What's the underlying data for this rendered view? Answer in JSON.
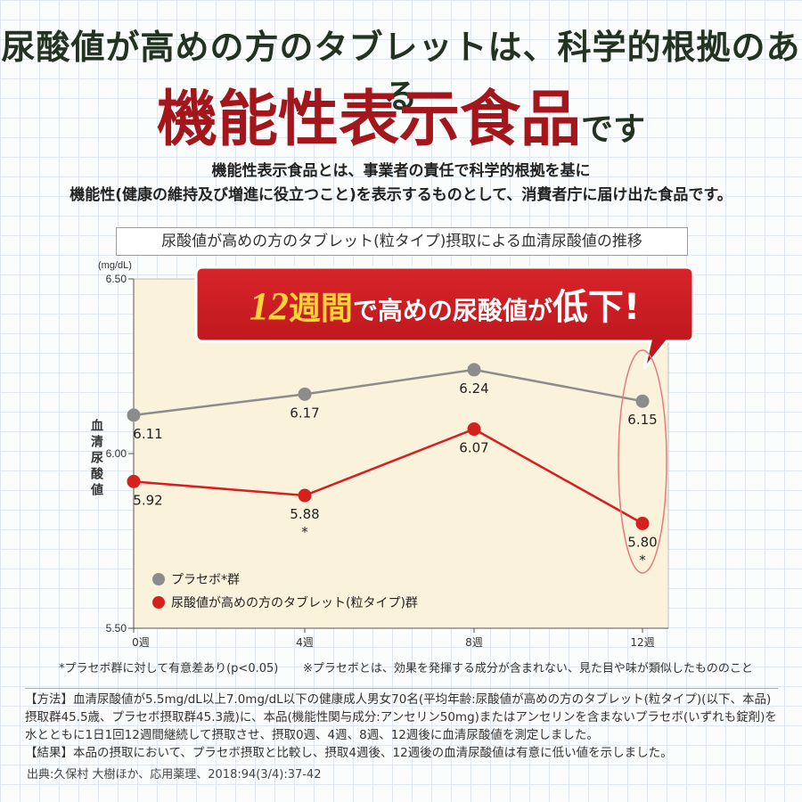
{
  "header": {
    "line1": "尿酸値が高めの方のタブレットは、科学的根拠のある",
    "line2_main": "機能性表示食品",
    "line2_suffix": "です"
  },
  "description": {
    "line1": "機能性表示食品とは、事業者の責任で科学的根拠を基に",
    "line2": "機能性(健康の維持及び増進に役立つこと)を表示するものとして、消費者庁に届け出た食品です。"
  },
  "callout": {
    "num": "12",
    "weeks": "週間",
    "mid": "で高めの尿酸値が",
    "big": "低下",
    "bang": "!"
  },
  "colors": {
    "placebo": "#8c8c8c",
    "tablet": "#d61f1f",
    "headline_red": "#a3161c",
    "plot_bg": "#fbf2dc"
  },
  "chart_data": {
    "type": "line",
    "title": "尿酸値が高めの方のタブレット(粒タイプ)摂取による血清尿酸値の推移",
    "unit": "(mg/dL)",
    "ylabel": "血清尿酸値",
    "categories": [
      "0週",
      "4週",
      "8週",
      "12週"
    ],
    "x": [
      0,
      4,
      8,
      12
    ],
    "ylim": [
      5.5,
      6.5
    ],
    "yticks": [
      "5.50",
      "6.00",
      "6.50"
    ],
    "series": [
      {
        "name": "プラセボ*群",
        "values": [
          6.11,
          6.17,
          6.24,
          6.15
        ],
        "labels": [
          "6.11",
          "6.17",
          "6.24",
          "6.15"
        ],
        "significance": [
          "",
          "",
          "",
          ""
        ]
      },
      {
        "name": "尿酸値が高めの方のタブレット(粒タイプ)群",
        "values": [
          5.92,
          5.88,
          6.07,
          5.8
        ],
        "labels": [
          "5.92",
          "5.88",
          "6.07",
          "5.80"
        ],
        "significance": [
          "",
          "*",
          "",
          "*"
        ]
      }
    ]
  },
  "footnotes": {
    "significance": "*プラセボ群に対して有意差あり(p<0.05)",
    "placebo_def": "※プラセボとは、効果を発揮する成分が含まれない、見た目や味が類似したもののこと"
  },
  "method": {
    "text": "【方法】血清尿酸値が5.5mg/dL以上7.0mg/dL以下の健康成人男女70名(平均年齢:尿酸値が高めの方のタブレット(粒タイプ)(以下、本品)摂取群45.5歳、プラセボ摂取群45.3歳)に、本品(機能性関与成分:アンセリン50mg)またはアンセリンを含まないプラセボ(いずれも錠剤)を水とともに1日1回12週間継続して摂取させ、摂取0週、4週、8週、12週後に血清尿酸値を測定しました。",
    "result": "【結果】本品の摂取において、プラセボ摂取と比較し、摂取4週後、12週後の血清尿酸値は有意に低い値を示しました。"
  },
  "source": "出典:久保村 大樹ほか、応用薬理、2018:94(3/4):37-42"
}
